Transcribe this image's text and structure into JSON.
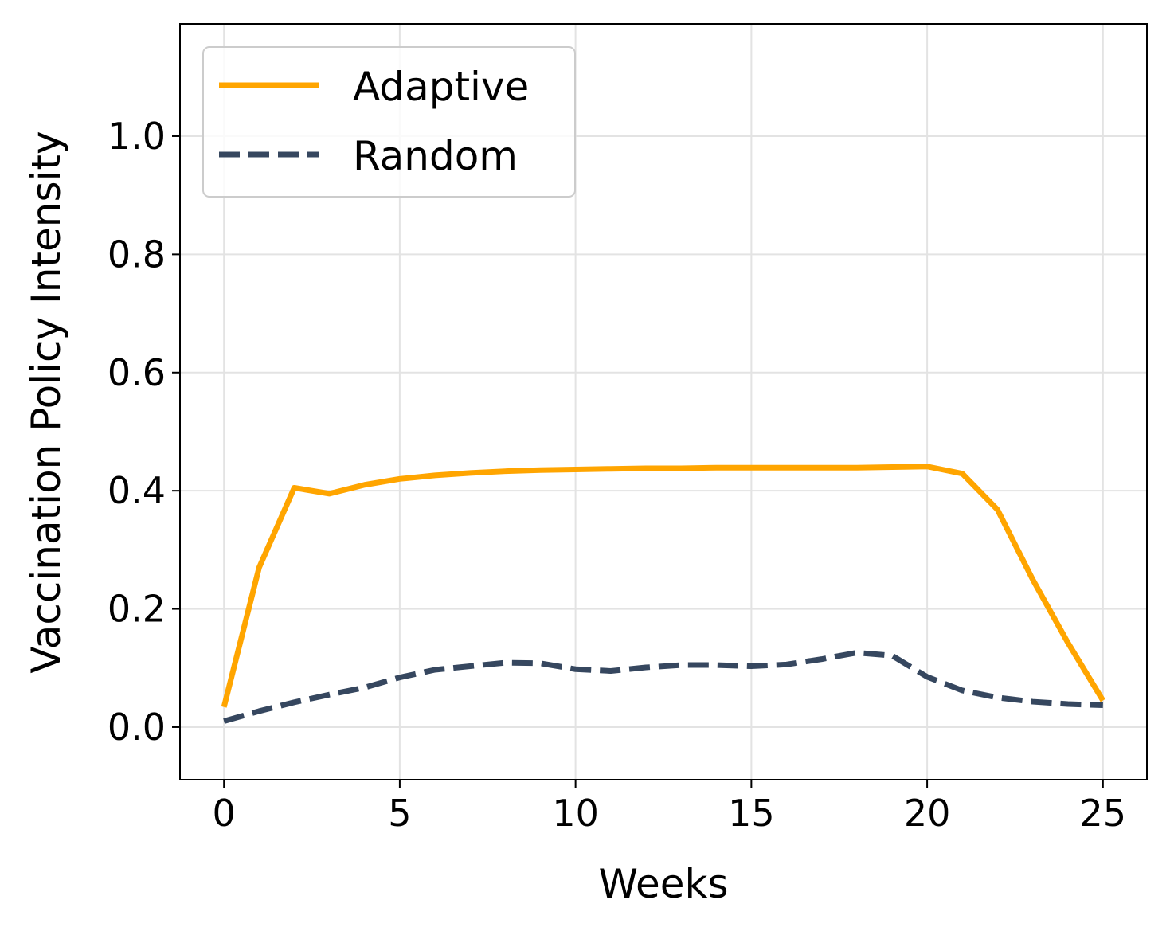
{
  "chart_data": {
    "type": "line",
    "title": "",
    "xlabel": "Weeks",
    "ylabel": "Vaccination Policy Intensity",
    "xlim": [
      -1.25,
      26.25
    ],
    "ylim": [
      -0.089,
      1.19
    ],
    "xticks": [
      0,
      5,
      10,
      15,
      20,
      25
    ],
    "yticks": [
      0.0,
      0.2,
      0.4,
      0.6,
      0.8,
      1.0
    ],
    "xtick_labels": [
      "0",
      "5",
      "10",
      "15",
      "20",
      "25"
    ],
    "ytick_labels": [
      "0.0",
      "0.2",
      "0.4",
      "0.6",
      "0.8",
      "1.0"
    ],
    "grid": true,
    "legend_position": "top-left",
    "x": [
      0,
      1,
      2,
      3,
      4,
      5,
      6,
      7,
      8,
      9,
      10,
      11,
      12,
      13,
      14,
      15,
      16,
      17,
      18,
      19,
      20,
      21,
      22,
      23,
      24,
      25
    ],
    "series": [
      {
        "name": "Adaptive",
        "color": "#FFA500",
        "style": "solid",
        "values": [
          0.034,
          0.27,
          0.405,
          0.395,
          0.41,
          0.42,
          0.426,
          0.43,
          0.433,
          0.435,
          0.436,
          0.437,
          0.438,
          0.438,
          0.439,
          0.439,
          0.439,
          0.439,
          0.439,
          0.44,
          0.441,
          0.429,
          0.368,
          0.25,
          0.143,
          0.045
        ]
      },
      {
        "name": "Random",
        "color": "#36475F",
        "style": "dashed",
        "values": [
          0.01,
          0.027,
          0.042,
          0.055,
          0.067,
          0.084,
          0.097,
          0.103,
          0.109,
          0.108,
          0.098,
          0.095,
          0.101,
          0.105,
          0.105,
          0.103,
          0.106,
          0.115,
          0.126,
          0.121,
          0.085,
          0.062,
          0.05,
          0.043,
          0.039,
          0.037
        ]
      }
    ]
  }
}
